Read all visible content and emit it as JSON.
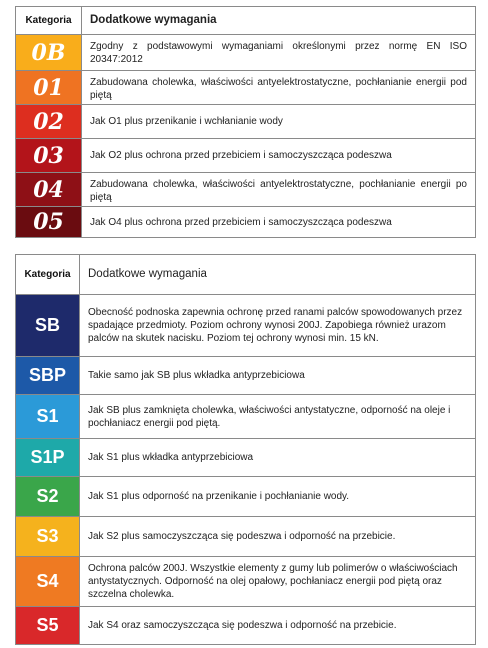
{
  "table1": {
    "header": {
      "category": "Kategoria",
      "requirements": "Dodatkowe wymagania"
    },
    "rows": [
      {
        "code": "0B",
        "bg": "#f9ad1b",
        "fg": "#ffffff",
        "text": "Zgodny z podstawowymi wymaganiami określonymi przez normę EN ISO 20347:2012"
      },
      {
        "code": "01",
        "bg": "#ef7322",
        "fg": "#ffffff",
        "text": "Zabudowana cholewka, właściwości antyelektrostatyczne, pochłanianie energii pod piętą"
      },
      {
        "code": "02",
        "bg": "#dd2e1f",
        "fg": "#ffffff",
        "text": "Jak O1 plus przenikanie i wchłanianie wody"
      },
      {
        "code": "03",
        "bg": "#b3141a",
        "fg": "#ffffff",
        "text": "Jak O2 plus ochrona przed przebiciem i samoczyszcząca podeszwa"
      },
      {
        "code": "04",
        "bg": "#8e1016",
        "fg": "#ffffff",
        "text": "Zabudowana cholewka, właściwości antyelektrostatyczne, pochłanianie energii po piętą"
      },
      {
        "code": "05",
        "bg": "#6a0c10",
        "fg": "#ffffff",
        "text": "Jak O4 plus ochrona przed przebiciem i samoczyszcząca podeszwa"
      }
    ]
  },
  "table2": {
    "header": {
      "category": "Kategoria",
      "requirements": "Dodatkowe wymagania"
    },
    "rows": [
      {
        "code": "SB",
        "bg": "#1e2a6b",
        "text": "Obecność podnoska zapewnia ochronę przed ranami palców spowodowanych przez spadające przedmioty. Poziom ochrony wynosi 200J. Zapobiega również urazom palców na skutek nacisku. Poziom tej ochrony wynosi min. 15 kN."
      },
      {
        "code": "SBP",
        "bg": "#1d59a8",
        "text": "Takie samo jak SB plus wkładka antyprzebiciowa"
      },
      {
        "code": "S1",
        "bg": "#2b9ad8",
        "text": "Jak SB plus zamknięta cholewka, właściwości antystatyczne, odporność na oleje i pochłaniacz energii pod piętą."
      },
      {
        "code": "S1P",
        "bg": "#1ea9a9",
        "text": "Jak S1 plus wkładka antyprzebiciowa"
      },
      {
        "code": "S2",
        "bg": "#3aa64a",
        "text": "Jak S1 plus odporność na przenikanie i pochłanianie wody."
      },
      {
        "code": "S3",
        "bg": "#f5b21d",
        "text": "Jak S2 plus samoczyszcząca się podeszwa i odporność na przebicie."
      },
      {
        "code": "S4",
        "bg": "#ef7a22",
        "text": "Ochrona palców 200J. Wszystkie elementy z gumy lub polimerów o właściwościach antystatycznych. Odporność na olej opałowy, pochłaniacz energii pod piętą oraz szczelna cholewka."
      },
      {
        "code": "S5",
        "bg": "#d9282a",
        "text": "Jak S4 oraz samoczyszcząca się  podeszwa i odporność na przebicie."
      }
    ]
  }
}
